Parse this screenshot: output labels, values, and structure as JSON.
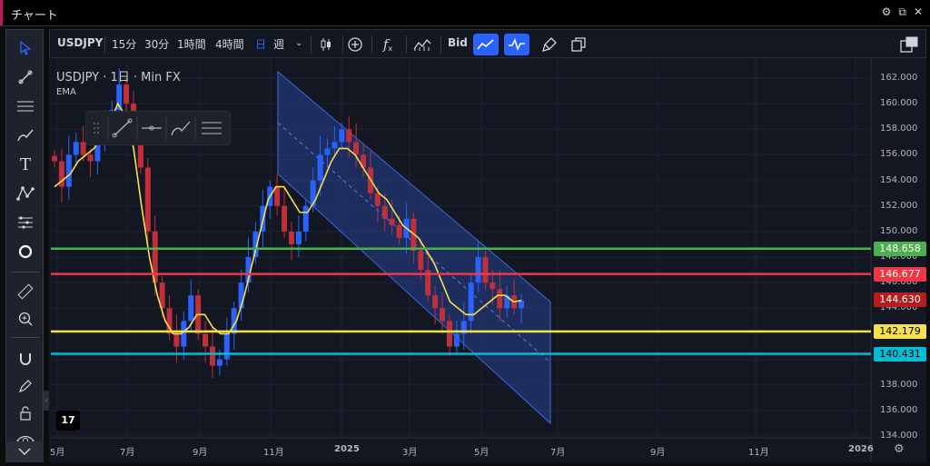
{
  "window": {
    "title": "チャート"
  },
  "toolbar": {
    "symbol": "USDJPY",
    "intervals": [
      "15分",
      "30分",
      "1時間",
      "4時間",
      "日",
      "週"
    ],
    "active_interval": "日",
    "price_type": "Bid"
  },
  "legend": {
    "symbol_line": "USDJPY · 1日 · Min FX",
    "indicator": "EMA"
  },
  "colors": {
    "background": "#131722",
    "up_candle": "#2962ff",
    "down_candle": "#c0303a",
    "ema": "#f5e14a",
    "channel_fill": "#2b4aa8",
    "green_line": "#4caf50",
    "red_line": "#f23645",
    "yellow_line": "#f5e14a",
    "cyan_line": "#00bcd4",
    "current_price": "#b71c1c"
  },
  "chart_data": {
    "type": "candlestick",
    "y_axis": {
      "min": 134,
      "max": 162,
      "ticks": [
        "134.000",
        "136.000",
        "138.000",
        "140.000",
        "142.000",
        "144.000",
        "146.000",
        "148.000",
        "150.000",
        "152.000",
        "154.000",
        "156.000",
        "158.000",
        "160.000",
        "162.000"
      ]
    },
    "x_axis": {
      "labels": [
        "5月",
        "7月",
        "9月",
        "11月",
        "2025",
        "3月",
        "5月",
        "7月",
        "9月",
        "11月",
        "2026"
      ]
    },
    "horizontal_lines": [
      {
        "price": 148.658,
        "label": "148.658",
        "color": "#4caf50"
      },
      {
        "price": 146.677,
        "label": "146.677",
        "color": "#f23645"
      },
      {
        "price": 142.179,
        "label": "142.179",
        "color": "#f5e14a"
      },
      {
        "price": 140.431,
        "label": "140.431",
        "color": "#00bcd4"
      }
    ],
    "current_price": {
      "price": 144.63,
      "label": "144.630"
    },
    "close_series": [
      155.5,
      153.5,
      156,
      157,
      156,
      155.5,
      157,
      158,
      159.5,
      161.5,
      160,
      158,
      155,
      150,
      146,
      144,
      142,
      141,
      143,
      145,
      142,
      141,
      139.5,
      140,
      142,
      144,
      146,
      148,
      150,
      152,
      153.5,
      152,
      150,
      149,
      150,
      152,
      154,
      156,
      156.5,
      157,
      158,
      157,
      156,
      155,
      153,
      152,
      151,
      150.5,
      149.5,
      151,
      148.5,
      147,
      145,
      144,
      143,
      141,
      142,
      143,
      146,
      148,
      146,
      145.5,
      144,
      145,
      144,
      144.6
    ],
    "ema_series": [
      153.5,
      154,
      154.5,
      155.5,
      156,
      156.5,
      157.5,
      158.5,
      160,
      159,
      156.5,
      152,
      148,
      145,
      143,
      142,
      142,
      142.5,
      143.5,
      143.5,
      142.5,
      142,
      142,
      143,
      145,
      147.5,
      150,
      152.5,
      153.5,
      153.5,
      152.5,
      151.5,
      151.5,
      152.5,
      154,
      155.5,
      156.5,
      156.5,
      156,
      155,
      154,
      153,
      152.5,
      151.5,
      150.5,
      150,
      149.5,
      148.5,
      147.5,
      146,
      144.5,
      144,
      143.5,
      143.5,
      144,
      144.5,
      145,
      145,
      144.5,
      144.6
    ],
    "channel": {
      "start_x_label": "11月",
      "upper_start": 162.5,
      "lower_start": 154.5,
      "upper_end": 144.5,
      "lower_end": 135,
      "end_x_label": "7月"
    }
  }
}
